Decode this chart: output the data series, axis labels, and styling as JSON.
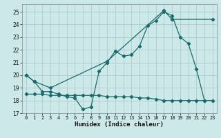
{
  "title": "",
  "xlabel": "Humidex (Indice chaleur)",
  "bg_color": "#cce8e8",
  "grid_color": "#aacccc",
  "line_color": "#1a6b6b",
  "xlim": [
    -0.5,
    23.5
  ],
  "ylim": [
    17,
    25.6
  ],
  "yticks": [
    17,
    18,
    19,
    20,
    21,
    22,
    23,
    24,
    25
  ],
  "xticks": [
    0,
    1,
    2,
    3,
    4,
    5,
    6,
    7,
    8,
    9,
    10,
    11,
    12,
    13,
    14,
    15,
    16,
    17,
    18,
    19,
    20,
    21,
    22,
    23
  ],
  "line1_x": [
    0,
    1,
    2,
    3,
    4,
    5,
    6,
    7,
    8,
    9,
    10,
    11,
    12,
    13,
    14,
    15,
    16,
    17,
    18,
    19,
    20,
    21,
    22
  ],
  "line1_y": [
    20.0,
    19.5,
    18.7,
    18.7,
    18.5,
    18.3,
    18.2,
    17.3,
    17.5,
    20.3,
    21.0,
    21.9,
    21.5,
    21.6,
    22.3,
    23.9,
    24.3,
    25.0,
    24.7,
    23.0,
    22.5,
    20.5,
    18.0
  ],
  "line2_x": [
    0,
    1,
    3,
    10,
    17,
    18,
    23
  ],
  "line2_y": [
    20.0,
    19.5,
    19.0,
    21.1,
    25.1,
    24.4,
    24.4
  ],
  "line3_x": [
    0,
    1,
    2,
    3,
    4,
    5,
    6,
    7,
    8,
    9,
    10,
    11,
    12,
    13,
    14,
    15,
    16,
    17,
    18,
    19,
    20,
    21,
    22,
    23
  ],
  "line3_y": [
    18.5,
    18.5,
    18.5,
    18.4,
    18.4,
    18.4,
    18.4,
    18.4,
    18.4,
    18.4,
    18.3,
    18.3,
    18.3,
    18.3,
    18.2,
    18.2,
    18.1,
    18.0,
    18.0,
    18.0,
    18.0,
    18.0,
    18.0,
    18.0
  ]
}
